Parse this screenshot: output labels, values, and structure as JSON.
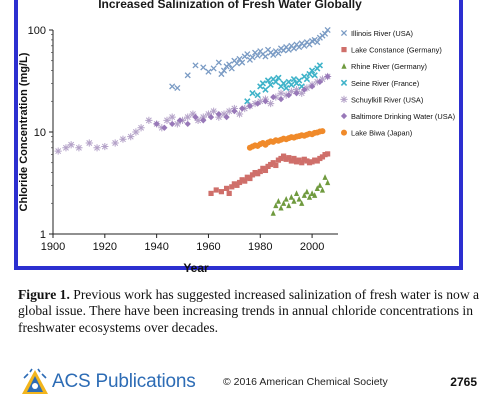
{
  "caption": {
    "label": "Figure 1.",
    "text": " Previous work has suggested increased salinization of fresh water is now a global issue. There have been increasing trends in annual chloride concentrations in freshwater ecosystems over decades."
  },
  "footer": {
    "publisher": "ACS Publications",
    "copyright": "© 2016 American Chemical Society",
    "page": "2765"
  },
  "chart_data": {
    "type": "scatter",
    "title": "Increased Salinization of Fresh Water Globally",
    "xlabel": "Year",
    "ylabel": "Chloride Concentration (mg/L)",
    "xlim": [
      1900,
      2010
    ],
    "ylim": [
      1,
      100
    ],
    "yscale": "log",
    "x_ticks": [
      "1900",
      "1920",
      "1940",
      "1960",
      "1980",
      "2000"
    ],
    "y_ticks": [
      "1",
      "10",
      "100"
    ],
    "legend_position": "top-right",
    "series": [
      {
        "name": "Illinois River (USA)",
        "marker": "x",
        "color": "#7a9bc4",
        "x": [
          1946,
          1948,
          1952,
          1955,
          1958,
          1960,
          1962,
          1964,
          1965,
          1966,
          1967,
          1968,
          1969,
          1970,
          1971,
          1972,
          1973,
          1974,
          1975,
          1976,
          1977,
          1978,
          1979,
          1980,
          1981,
          1982,
          1983,
          1984,
          1985,
          1986,
          1987,
          1988,
          1989,
          1990,
          1991,
          1992,
          1993,
          1994,
          1995,
          1996,
          1997,
          1998,
          1999,
          2000,
          2001,
          2002,
          2003,
          2004,
          2005,
          2006
        ],
        "y": [
          28,
          27,
          36,
          45,
          43,
          39,
          42,
          48,
          37,
          40,
          44,
          46,
          42,
          50,
          47,
          52,
          48,
          55,
          58,
          51,
          54,
          60,
          56,
          62,
          58,
          55,
          64,
          60,
          57,
          62,
          59,
          66,
          63,
          68,
          64,
          70,
          66,
          72,
          68,
          74,
          70,
          76,
          72,
          78,
          80,
          76,
          84,
          88,
          92,
          100
        ]
      },
      {
        "name": "Lake Constance (Germany)",
        "marker": "square",
        "color": "#cf6f6a",
        "x": [
          1961,
          1963,
          1965,
          1967,
          1968,
          1969,
          1970,
          1971,
          1972,
          1973,
          1974,
          1975,
          1976,
          1977,
          1978,
          1979,
          1980,
          1981,
          1982,
          1983,
          1984,
          1985,
          1986,
          1987,
          1988,
          1989,
          1990,
          1991,
          1992,
          1993,
          1994,
          1995,
          1996,
          1997,
          1998,
          1999,
          2000,
          2001,
          2002,
          2003,
          2004,
          2005,
          2006
        ],
        "y": [
          2.5,
          2.7,
          2.6,
          2.8,
          2.5,
          2.9,
          3.1,
          3.0,
          3.2,
          3.4,
          3.3,
          3.6,
          3.5,
          3.8,
          4.0,
          3.9,
          4.1,
          4.4,
          4.2,
          4.6,
          4.8,
          5.0,
          4.7,
          5.3,
          5.5,
          5.8,
          5.4,
          5.6,
          5.2,
          5.5,
          5.1,
          5.3,
          5.0,
          5.4,
          5.2,
          5.0,
          5.1,
          5.3,
          5.2,
          5.5,
          5.7,
          6.0,
          6.1
        ]
      },
      {
        "name": "Rhine River (Germany)",
        "marker": "triangle",
        "color": "#6f9a3e",
        "x": [
          1985,
          1986,
          1987,
          1988,
          1989,
          1990,
          1991,
          1992,
          1993,
          1994,
          1995,
          1996,
          1997,
          1998,
          1999,
          2000,
          2001,
          2002,
          2003,
          2004,
          2005,
          2006
        ],
        "y": [
          1.6,
          1.9,
          2.1,
          1.8,
          2.0,
          2.2,
          1.9,
          2.3,
          2.1,
          2.5,
          2.2,
          2.0,
          2.4,
          2.6,
          2.3,
          2.5,
          2.4,
          2.8,
          3.0,
          2.7,
          3.6,
          3.2
        ]
      },
      {
        "name": "Seine River (France)",
        "marker": "cross",
        "color": "#3fb3c9",
        "x": [
          1975,
          1977,
          1979,
          1980,
          1981,
          1982,
          1983,
          1984,
          1985,
          1986,
          1987,
          1988,
          1989,
          1990,
          1991,
          1992,
          1993,
          1994,
          1995,
          1996,
          1997,
          1998,
          1999,
          2000,
          2001,
          2002,
          2003
        ],
        "y": [
          20,
          24,
          23,
          28,
          30,
          26,
          32,
          29,
          33,
          31,
          34,
          28,
          30,
          27,
          31,
          29,
          33,
          30,
          32,
          28,
          35,
          33,
          37,
          40,
          36,
          42,
          45
        ]
      },
      {
        "name": "Schuylkill River (USA)",
        "marker": "star",
        "color": "#b4a2c8",
        "x": [
          1902,
          1905,
          1907,
          1910,
          1914,
          1917,
          1920,
          1924,
          1927,
          1930,
          1932,
          1934,
          1937,
          1940,
          1942,
          1944,
          1946,
          1948,
          1950,
          1952,
          1954,
          1956,
          1958,
          1960,
          1962,
          1964,
          1966,
          1968,
          1970,
          1972,
          1974,
          1976,
          1978,
          1980,
          1982,
          1984,
          1986,
          1988,
          1990,
          1992,
          1994,
          1996,
          1998,
          2000,
          2002,
          2004,
          2006
        ],
        "y": [
          6.5,
          7,
          7.5,
          7,
          7.8,
          7,
          7.2,
          7.8,
          8.5,
          9,
          10,
          11,
          13,
          12,
          11,
          13,
          14,
          12,
          13,
          14,
          15,
          13,
          14,
          15,
          16,
          14,
          15,
          16,
          17,
          15,
          17,
          18,
          19,
          20,
          21,
          19,
          22,
          24,
          23,
          25,
          26,
          24,
          27,
          29,
          31,
          33,
          35
        ]
      },
      {
        "name": "Baltimore Drinking Water (USA)",
        "marker": "diamond",
        "color": "#9878b8",
        "x": [
          1940,
          1943,
          1946,
          1949,
          1952,
          1955,
          1958,
          1961,
          1964,
          1967,
          1970,
          1973,
          1976,
          1979,
          1982,
          1985,
          1988,
          1991,
          1994,
          1997,
          2000,
          2003,
          2006
        ],
        "y": [
          12,
          11,
          12,
          13,
          12,
          14,
          13,
          14,
          15,
          14,
          16,
          17,
          18,
          19,
          20,
          22,
          21,
          23,
          24,
          26,
          28,
          31,
          35
        ]
      },
      {
        "name": "Lake Biwa (Japan)",
        "marker": "circle",
        "color": "#f08a2a",
        "x": [
          1976,
          1977,
          1978,
          1979,
          1980,
          1981,
          1982,
          1983,
          1984,
          1985,
          1986,
          1987,
          1988,
          1989,
          1990,
          1991,
          1992,
          1993,
          1994,
          1995,
          1996,
          1997,
          1998,
          1999,
          2000,
          2001,
          2002,
          2003,
          2004
        ],
        "y": [
          7.0,
          7.2,
          7.4,
          7.3,
          7.6,
          7.8,
          7.5,
          7.9,
          8.1,
          8.0,
          8.3,
          8.2,
          8.4,
          8.6,
          8.5,
          8.7,
          8.9,
          8.8,
          9.0,
          9.1,
          9.3,
          9.2,
          9.4,
          9.6,
          9.5,
          9.8,
          9.9,
          10.1,
          10.2
        ]
      }
    ]
  }
}
